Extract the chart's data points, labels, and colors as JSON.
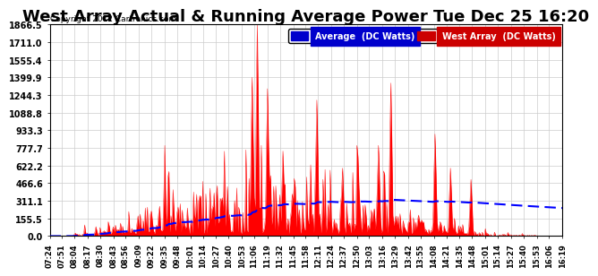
{
  "title": "West Array Actual & Running Average Power Tue Dec 25 16:20",
  "copyright": "Copyright 2012 Cartronics.com",
  "legend_labels": [
    "Average  (DC Watts)",
    "West Array  (DC Watts)"
  ],
  "ylim": [
    0,
    1866.5
  ],
  "yticks": [
    0.0,
    155.5,
    311.1,
    466.6,
    622.2,
    777.7,
    933.3,
    1088.8,
    1244.3,
    1399.9,
    1555.4,
    1711.0,
    1866.5
  ],
  "background_color": "#ffffff",
  "grid_color": "#cccccc",
  "red_color": "#ff0000",
  "blue_color": "#0000ff",
  "blue_legend_color": "#0000cc",
  "red_legend_color": "#cc0000",
  "title_fontsize": 13,
  "x_tick_labels": [
    "07:24",
    "07:51",
    "08:04",
    "08:17",
    "08:30",
    "08:43",
    "08:56",
    "09:09",
    "09:22",
    "09:35",
    "09:48",
    "10:01",
    "10:14",
    "10:27",
    "10:40",
    "10:53",
    "11:06",
    "11:19",
    "11:32",
    "11:45",
    "11:58",
    "12:11",
    "12:24",
    "12:37",
    "12:50",
    "13:03",
    "13:16",
    "13:29",
    "13:42",
    "13:55",
    "14:08",
    "14:21",
    "14:35",
    "14:48",
    "15:01",
    "15:14",
    "15:27",
    "15:40",
    "15:53",
    "16:06",
    "16:19"
  ]
}
